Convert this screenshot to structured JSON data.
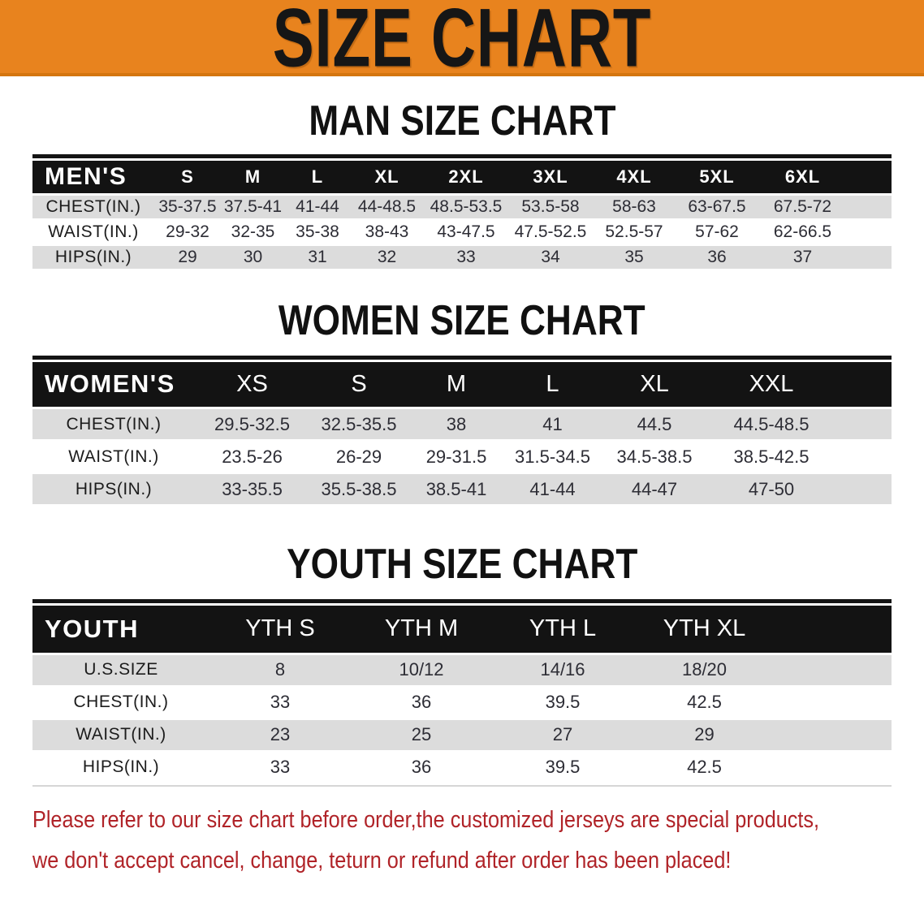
{
  "banner": {
    "title": "SIZE CHART",
    "bg_color": "#E8831E",
    "text_color": "#161616"
  },
  "sections": {
    "men": {
      "heading": "MAN SIZE CHART",
      "table": {
        "header": [
          "MEN'S",
          "S",
          "M",
          "L",
          "XL",
          "2XL",
          "3XL",
          "4XL",
          "5XL",
          "6XL"
        ],
        "rows": [
          {
            "label": "CHEST(IN.)",
            "values": [
              "35-37.5",
              "37.5-41",
              "41-44",
              "44-48.5",
              "48.5-53.5",
              "53.5-58",
              "58-63",
              "63-67.5",
              "67.5-72"
            ]
          },
          {
            "label": "WAIST(IN.)",
            "values": [
              "29-32",
              "32-35",
              "35-38",
              "38-43",
              "43-47.5",
              "47.5-52.5",
              "52.5-57",
              "57-62",
              "62-66.5"
            ]
          },
          {
            "label": "HIPS(IN.)",
            "values": [
              "29",
              "30",
              "31",
              "32",
              "33",
              "34",
              "35",
              "36",
              "37"
            ]
          }
        ]
      }
    },
    "women": {
      "heading": "WOMEN SIZE CHART",
      "table": {
        "header": [
          "WOMEN'S",
          "XS",
          "S",
          "M",
          "L",
          "XL",
          "XXL"
        ],
        "rows": [
          {
            "label": "CHEST(IN.)",
            "values": [
              "29.5-32.5",
              "32.5-35.5",
              "38",
              "41",
              "44.5",
              "44.5-48.5"
            ]
          },
          {
            "label": "WAIST(IN.)",
            "values": [
              "23.5-26",
              "26-29",
              "29-31.5",
              "31.5-34.5",
              "34.5-38.5",
              "38.5-42.5"
            ]
          },
          {
            "label": "HIPS(IN.)",
            "values": [
              "33-35.5",
              "35.5-38.5",
              "38.5-41",
              "41-44",
              "44-47",
              "47-50"
            ]
          }
        ]
      }
    },
    "youth": {
      "heading": "YOUTH SIZE CHART",
      "table": {
        "header": [
          "YOUTH",
          "YTH S",
          "YTH M",
          "YTH L",
          "YTH XL"
        ],
        "rows": [
          {
            "label": "U.S.SIZE",
            "values": [
              "8",
              "10/12",
              "14/16",
              "18/20"
            ]
          },
          {
            "label": "CHEST(IN.)",
            "values": [
              "33",
              "36",
              "39.5",
              "42.5"
            ]
          },
          {
            "label": "WAIST(IN.)",
            "values": [
              "23",
              "25",
              "27",
              "29"
            ]
          },
          {
            "label": "HIPS(IN.)",
            "values": [
              "33",
              "36",
              "39.5",
              "42.5"
            ]
          }
        ]
      }
    }
  },
  "disclaimer": {
    "lines": [
      "Please refer to our size chart before order,the customized jerseys are special products,",
      "we don't accept cancel, change, teturn or refund after order has been placed!"
    ],
    "color": "#b02328"
  },
  "colors": {
    "accent_orange": "#E8831E",
    "header_black": "#131313",
    "zebra_gray": "#dcdcdc",
    "disclaimer_red": "#b02328"
  }
}
